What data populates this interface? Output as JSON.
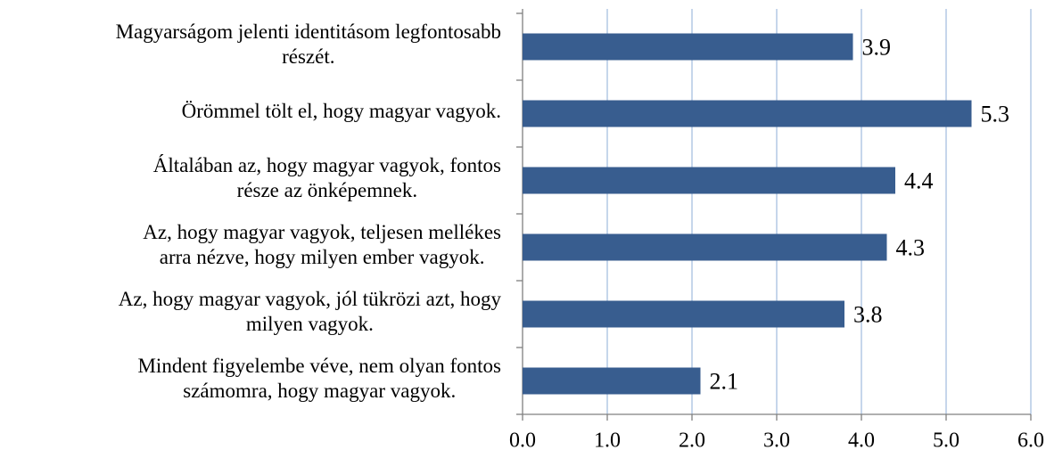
{
  "chart_data": {
    "type": "bar",
    "orientation": "horizontal",
    "categories": [
      "Magyarságom jelenti identitásom legfontosabb\nrészét.",
      "Örömmel tölt el, hogy magyar vagyok.",
      "Általában az, hogy magyar vagyok, fontos\nrésze az önképemnek.",
      "Az, hogy magyar vagyok, teljesen mellékes\narra nézve, hogy milyen ember vagyok.",
      "Az, hogy magyar vagyok, jól tükrözi azt, hogy\nmilyen vagyok.",
      "Mindent figyelembe véve, nem olyan fontos\nszámomra, hogy magyar vagyok."
    ],
    "values": [
      3.9,
      5.3,
      4.4,
      4.3,
      3.8,
      2.1
    ],
    "color": "#385d8f",
    "xlim": [
      0,
      6
    ],
    "xticks": [
      {
        "value": 0,
        "label": "0.0"
      },
      {
        "value": 1,
        "label": "1.0"
      },
      {
        "value": 2,
        "label": "2.0"
      },
      {
        "value": 3,
        "label": "3.0"
      },
      {
        "value": 4,
        "label": "4.0"
      },
      {
        "value": 5,
        "label": "5.0"
      },
      {
        "value": 6,
        "label": "6.0"
      }
    ],
    "grid": true,
    "grid_color": "#a8c0e0"
  }
}
